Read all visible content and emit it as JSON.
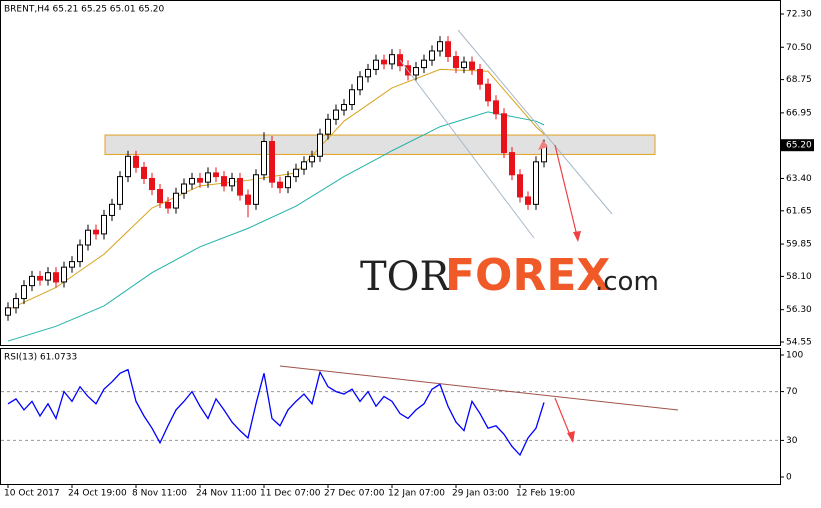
{
  "chart_data": {
    "type": "candlestick",
    "title": "BRENT,H4  65.21 65.25 65.01 65.20",
    "watermark": [
      "TOR",
      "FOREX",
      ".com"
    ],
    "categories": [
      "10 Oct 2017",
      null,
      null,
      null,
      null,
      null,
      null,
      null,
      "24 Oct 19:00",
      null,
      null,
      null,
      null,
      null,
      null,
      null,
      "8 Nov 11:00",
      null,
      null,
      null,
      null,
      null,
      null,
      null,
      "24 Nov 11:00",
      null,
      null,
      null,
      null,
      null,
      null,
      null,
      "11 Dec 07:00",
      null,
      null,
      null,
      null,
      null,
      null,
      null,
      "27 Dec 07:00",
      null,
      null,
      null,
      null,
      null,
      null,
      null,
      "12 Jan 07:00",
      null,
      null,
      null,
      null,
      null,
      null,
      null,
      "29 Jan 03:00",
      null,
      null,
      null,
      null,
      null,
      null,
      null,
      "12 Feb 19:00",
      null,
      null,
      null
    ],
    "open": [
      56.0,
      56.4,
      56.9,
      57.6,
      58.1,
      57.9,
      58.3,
      57.8,
      58.6,
      58.9,
      59.8,
      60.6,
      60.4,
      61.4,
      62.0,
      63.5,
      64.6,
      64.0,
      63.4,
      62.8,
      62.1,
      61.8,
      62.6,
      63.1,
      63.4,
      63.2,
      63.7,
      63.5,
      63.0,
      63.4,
      62.5,
      62.0,
      63.6,
      65.4,
      63.2,
      62.9,
      63.5,
      63.9,
      64.3,
      64.6,
      65.8,
      66.6,
      67.1,
      67.4,
      68.2,
      68.9,
      69.3,
      69.8,
      69.6,
      70.1,
      69.5,
      69.0,
      69.4,
      69.8,
      70.3,
      70.8,
      70.0,
      69.4,
      69.7,
      69.3,
      68.5,
      67.6,
      66.9,
      64.8,
      63.6,
      62.4,
      62.0,
      64.3
    ],
    "high": [
      56.7,
      57.2,
      57.9,
      58.4,
      58.4,
      58.6,
      58.6,
      58.9,
      59.2,
      60.1,
      60.9,
      60.9,
      61.7,
      62.3,
      63.8,
      64.9,
      64.9,
      64.3,
      63.7,
      63.1,
      62.4,
      62.9,
      63.4,
      63.7,
      63.7,
      64.0,
      64.0,
      63.8,
      63.7,
      63.7,
      62.8,
      63.9,
      65.9,
      65.7,
      63.5,
      63.8,
      64.2,
      64.6,
      64.9,
      66.1,
      66.9,
      67.4,
      67.7,
      68.5,
      69.2,
      69.6,
      70.1,
      70.1,
      70.4,
      70.4,
      69.8,
      69.7,
      70.1,
      70.6,
      71.1,
      71.1,
      70.3,
      70.0,
      70.0,
      69.6,
      68.8,
      67.9,
      67.2,
      65.1,
      63.9,
      62.7,
      64.6,
      65.5
    ],
    "low": [
      55.7,
      56.1,
      56.6,
      57.3,
      57.6,
      57.6,
      57.5,
      57.5,
      58.3,
      58.6,
      59.5,
      60.1,
      60.1,
      61.1,
      61.7,
      63.2,
      63.7,
      63.1,
      62.5,
      61.8,
      61.5,
      61.5,
      62.3,
      62.8,
      62.9,
      62.9,
      63.2,
      62.7,
      62.7,
      62.2,
      61.3,
      61.7,
      63.3,
      62.9,
      62.6,
      62.6,
      63.2,
      63.6,
      64.0,
      64.3,
      65.5,
      66.3,
      66.8,
      67.1,
      67.9,
      68.6,
      69.0,
      69.3,
      69.3,
      69.2,
      68.7,
      68.7,
      69.1,
      69.5,
      70.0,
      69.7,
      69.1,
      69.1,
      69.0,
      68.2,
      67.3,
      66.6,
      64.5,
      63.3,
      62.1,
      61.7,
      61.7,
      64.0
    ],
    "close": [
      56.4,
      56.9,
      57.6,
      58.1,
      57.9,
      58.3,
      57.8,
      58.6,
      58.9,
      59.8,
      60.6,
      60.4,
      61.4,
      62.0,
      63.5,
      64.6,
      64.0,
      63.4,
      62.8,
      62.1,
      61.8,
      62.6,
      63.1,
      63.4,
      63.2,
      63.7,
      63.5,
      63.0,
      63.4,
      62.5,
      62.0,
      63.6,
      65.4,
      63.2,
      62.9,
      63.5,
      63.9,
      64.3,
      64.6,
      65.8,
      66.6,
      67.1,
      67.4,
      68.2,
      68.9,
      69.3,
      69.8,
      69.6,
      70.1,
      69.5,
      69.0,
      69.4,
      69.8,
      70.3,
      70.8,
      70.0,
      69.4,
      69.7,
      69.3,
      68.5,
      67.6,
      66.9,
      64.8,
      63.6,
      62.4,
      62.0,
      64.3,
      65.2
    ],
    "up_color": "#000000",
    "down_color": "#e8121a",
    "moving_averages": [
      {
        "color": "#d9a21b",
        "x": [
          0,
          6,
          12,
          18,
          24,
          30,
          36,
          42,
          48,
          54,
          60,
          66,
          67
        ],
        "values": [
          56.3,
          57.5,
          59.3,
          61.8,
          63.0,
          63.3,
          63.7,
          66.5,
          68.3,
          69.3,
          69.2,
          66.2,
          65.8
        ]
      },
      {
        "color": "#20b2aa",
        "x": [
          0,
          6,
          12,
          18,
          24,
          30,
          36,
          42,
          48,
          54,
          60,
          66,
          67
        ],
        "values": [
          54.6,
          55.4,
          56.5,
          58.3,
          59.7,
          60.7,
          61.9,
          63.5,
          64.9,
          66.2,
          67.0,
          66.5,
          66.3
        ]
      }
    ],
    "zone": [
      64.7,
      65.75
    ],
    "ylim": [
      54.55,
      72.3
    ],
    "yticks": [
      {
        "value": 72.3,
        "label": "72.30"
      },
      {
        "value": 70.5,
        "label": "70.50"
      },
      {
        "value": 68.75,
        "label": "68.75"
      },
      {
        "value": 66.95,
        "label": "66.95"
      },
      {
        "value": 63.4,
        "label": "63.40"
      },
      {
        "value": 61.65,
        "label": "61.65"
      },
      {
        "value": 59.85,
        "label": "59.85"
      },
      {
        "value": 58.1,
        "label": "58.10"
      },
      {
        "value": 56.3,
        "label": "56.30"
      },
      {
        "value": 54.55,
        "label": "54.55"
      }
    ],
    "last_price": {
      "value": 65.2,
      "label": "65.20"
    },
    "rsi": {
      "title": "RSI(13) 61.0733",
      "color": "#0000ff",
      "ylim": [
        0,
        100
      ],
      "yticks": [
        100,
        70,
        30,
        0
      ],
      "levels": [
        70,
        30
      ],
      "values": [
        60,
        64,
        55,
        62,
        50,
        60,
        48,
        70,
        62,
        74,
        66,
        60,
        72,
        78,
        85,
        88,
        62,
        50,
        40,
        28,
        42,
        55,
        62,
        70,
        58,
        48,
        64,
        55,
        45,
        38,
        32,
        60,
        85,
        48,
        42,
        55,
        62,
        68,
        60,
        86,
        74,
        70,
        68,
        72,
        62,
        70,
        58,
        66,
        62,
        52,
        48,
        55,
        60,
        72,
        76,
        58,
        45,
        38,
        62,
        52,
        40,
        42,
        35,
        25,
        18,
        32,
        40,
        61.0733
      ]
    }
  }
}
